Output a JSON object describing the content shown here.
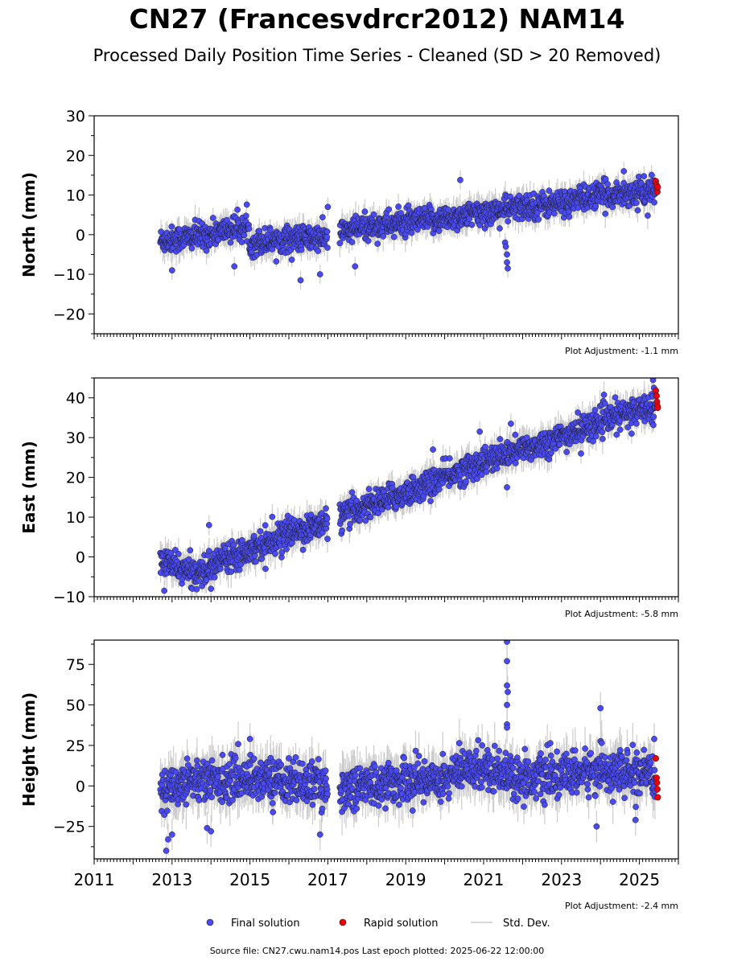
{
  "header": {
    "title": "CN27 (Francesvdrcr2012) NAM14",
    "subtitle": "Processed Daily Position Time Series - Cleaned (SD > 20 Removed)"
  },
  "legend": {
    "final_label": "Final solution",
    "rapid_label": "Rapid solution",
    "sd_label": "Std. Dev."
  },
  "colors": {
    "final": "#4a4af2",
    "rapid": "#e8000b",
    "stddev": "#cccccc",
    "marker_edge": "#1a1a1a"
  },
  "footer": {
    "source": "Source file: CN27.cwu.nam14.pos  Last epoch plotted: 2025-06-22 12:00:00"
  },
  "chart_data": [
    {
      "type": "scatter",
      "ylabel": "North (mm)",
      "ylim": [
        -25,
        30
      ],
      "yticks": [
        -20,
        -10,
        0,
        10,
        20,
        30
      ],
      "adjustment": "Plot Adjustment: -1.1 mm",
      "trend": [
        [
          2012.7,
          -1.5
        ],
        [
          2013.0,
          -1.2
        ],
        [
          2014.0,
          0.0
        ],
        [
          2014.5,
          1.5
        ],
        [
          2014.95,
          1.5
        ],
        [
          2015.0,
          -2.0
        ],
        [
          2016.0,
          -1.0
        ],
        [
          2017.0,
          -0.8
        ],
        [
          2017.3,
          0.5
        ],
        [
          2018.0,
          2.0
        ],
        [
          2019.0,
          3.0
        ],
        [
          2020.0,
          4.0
        ],
        [
          2021.0,
          5.5
        ],
        [
          2022.0,
          7.0
        ],
        [
          2023.0,
          8.0
        ],
        [
          2024.0,
          10.0
        ],
        [
          2025.45,
          11.0
        ]
      ],
      "noise": 1.6,
      "outliers": [
        [
          2013.0,
          -9
        ],
        [
          2014.6,
          -8
        ],
        [
          2016.3,
          -11.5
        ],
        [
          2016.8,
          -10
        ],
        [
          2017.7,
          -8
        ],
        [
          2021.55,
          -2
        ],
        [
          2021.57,
          -3
        ],
        [
          2021.6,
          -5
        ],
        [
          2021.6,
          -7
        ],
        [
          2021.62,
          -8.5
        ],
        [
          2020.4,
          13.8
        ],
        [
          2024.6,
          16
        ],
        [
          2017.0,
          7
        ]
      ],
      "rapid": [
        [
          2025.42,
          13.5
        ],
        [
          2025.44,
          12.5
        ],
        [
          2025.45,
          11.5
        ],
        [
          2025.46,
          10.8
        ],
        [
          2025.47,
          12
        ]
      ]
    },
    {
      "type": "scatter",
      "ylabel": "East (mm)",
      "ylim": [
        -10,
        45
      ],
      "yticks": [
        -10,
        0,
        10,
        20,
        30,
        40
      ],
      "adjustment": "Plot Adjustment: -5.8 mm",
      "trend": [
        [
          2012.7,
          -1.0
        ],
        [
          2013.0,
          -2.0
        ],
        [
          2013.5,
          -4.0
        ],
        [
          2014.0,
          -3.0
        ],
        [
          2014.3,
          0.0
        ],
        [
          2015.0,
          2.0
        ],
        [
          2016.0,
          6.0
        ],
        [
          2017.0,
          8.5
        ],
        [
          2017.3,
          10.0
        ],
        [
          2018.0,
          13.0
        ],
        [
          2019.0,
          16.0
        ],
        [
          2020.0,
          20.0
        ],
        [
          2021.0,
          24.0
        ],
        [
          2022.0,
          27.0
        ],
        [
          2023.0,
          30.0
        ],
        [
          2024.0,
          34.0
        ],
        [
          2025.45,
          38.5
        ]
      ],
      "noise": 1.7,
      "outliers": [
        [
          2012.8,
          -8.5
        ],
        [
          2014.0,
          -8
        ],
        [
          2013.95,
          8
        ],
        [
          2015.4,
          -3
        ],
        [
          2019.7,
          27
        ],
        [
          2020.9,
          31.5
        ],
        [
          2021.7,
          33.5
        ],
        [
          2021.6,
          17.5
        ],
        [
          2023.5,
          26
        ],
        [
          2024.8,
          31
        ],
        [
          2025.35,
          44.5
        ]
      ],
      "rapid": [
        [
          2025.42,
          41.8
        ],
        [
          2025.44,
          40.5
        ],
        [
          2025.45,
          39
        ],
        [
          2025.46,
          38
        ],
        [
          2025.47,
          37.5
        ]
      ]
    },
    {
      "type": "scatter",
      "ylabel": "Height (mm)",
      "ylim": [
        -45,
        90
      ],
      "yticks": [
        -25,
        0,
        25,
        50,
        75
      ],
      "adjustment": "Plot Adjustment: -2.4 mm",
      "trend": [
        [
          2012.7,
          -5.0
        ],
        [
          2013.5,
          5.0
        ],
        [
          2014.0,
          3.0
        ],
        [
          2015.0,
          5.0
        ],
        [
          2016.0,
          3.0
        ],
        [
          2017.0,
          0.0
        ],
        [
          2017.3,
          -2.0
        ],
        [
          2018.0,
          0.0
        ],
        [
          2019.0,
          3.0
        ],
        [
          2020.0,
          5.0
        ],
        [
          2020.5,
          10.0
        ],
        [
          2021.0,
          12.0
        ],
        [
          2022.0,
          5.0
        ],
        [
          2023.0,
          6.0
        ],
        [
          2023.5,
          8.0
        ],
        [
          2024.0,
          10.0
        ],
        [
          2024.5,
          8.0
        ],
        [
          2025.45,
          5.0
        ]
      ],
      "noise": 6.5,
      "outliers": [
        [
          2012.85,
          -40
        ],
        [
          2012.9,
          -33
        ],
        [
          2013.0,
          -30
        ],
        [
          2013.9,
          -26
        ],
        [
          2014.0,
          -28
        ],
        [
          2016.8,
          -30
        ],
        [
          2015.0,
          29
        ],
        [
          2021.6,
          89
        ],
        [
          2021.6,
          77
        ],
        [
          2021.6,
          62
        ],
        [
          2021.62,
          58
        ],
        [
          2021.6,
          50
        ],
        [
          2021.6,
          38
        ],
        [
          2021.6,
          36
        ],
        [
          2024.0,
          48
        ],
        [
          2023.9,
          -25
        ],
        [
          2024.9,
          -21
        ],
        [
          2025.38,
          29
        ]
      ],
      "rapid": [
        [
          2025.42,
          17
        ],
        [
          2025.44,
          5
        ],
        [
          2025.45,
          2
        ],
        [
          2025.46,
          -2
        ],
        [
          2025.47,
          -7
        ]
      ]
    }
  ],
  "x_axis": {
    "xlim": [
      2011,
      2026
    ],
    "ticks": [
      2011,
      2013,
      2015,
      2017,
      2019,
      2021,
      2023,
      2025
    ],
    "gap": [
      2017.0,
      2017.3
    ]
  }
}
